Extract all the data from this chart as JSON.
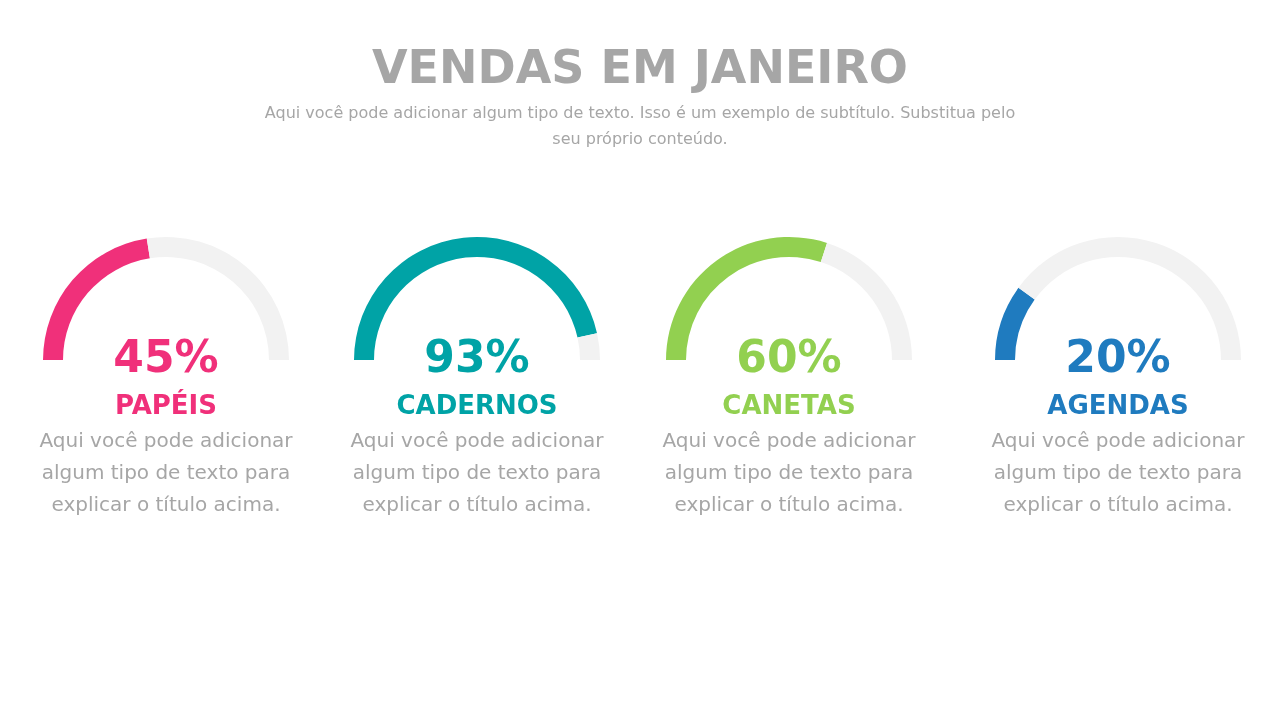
{
  "chart_data": [
    {
      "type": "other",
      "title": "VENDAS EM JANEIRO",
      "subtitle": "Aqui você pode adicionar algum tipo de texto. Isso é um exemplo de subtítulo. Substitua pelo seu próprio conteúdo."
    },
    {
      "type": "donut",
      "title": "PAPÉIS",
      "categories": [
        null,
        null
      ],
      "values": [
        45,
        55
      ],
      "colors": [
        "#f0307a",
        "#f2f2f2"
      ],
      "annotations": [
        "45%",
        "Aqui você pode adicionar algum tipo de texto para explicar o título acima."
      ]
    },
    {
      "type": "donut",
      "title": "CADERNOS",
      "categories": [
        null,
        null
      ],
      "values": [
        93,
        7
      ],
      "colors": [
        "#00a3a6",
        "#f2f2f2"
      ],
      "annotations": [
        "93%",
        "Aqui você pode adicionar algum tipo de texto para explicar o título acima."
      ]
    },
    {
      "type": "donut",
      "title": "CANETAS",
      "categories": [
        null,
        null
      ],
      "values": [
        60,
        40
      ],
      "colors": [
        "#92d050",
        "#f2f2f2"
      ],
      "annotations": [
        "60%",
        "Aqui você pode adicionar algum tipo de texto para explicar o título acima."
      ]
    },
    {
      "type": "donut",
      "title": "AGENDAS",
      "categories": [
        null,
        null
      ],
      "values": [
        20,
        80
      ],
      "colors": [
        "#1f7bbf",
        "#f2f2f2"
      ],
      "annotations": [
        "20%",
        "Aqui você pode adicionar algum tipo de texto para explicar o título acima."
      ]
    }
  ]
}
